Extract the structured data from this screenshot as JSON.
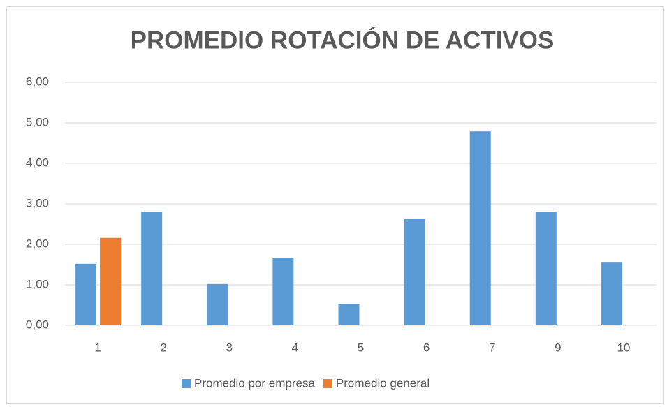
{
  "chart_data": {
    "type": "bar",
    "title": "PROMEDIO  ROTACIÓN DE ACTIVOS",
    "categories": [
      "1",
      "2",
      "3",
      "4",
      "5",
      "6",
      "7",
      "9",
      "10"
    ],
    "series": [
      {
        "name": "Promedio por empresa",
        "color": "#5b9bd5",
        "values": [
          1.52,
          2.81,
          1.02,
          1.67,
          0.53,
          2.62,
          4.79,
          2.81,
          1.55
        ]
      },
      {
        "name": "Promedio general",
        "color": "#ed7d31",
        "values": [
          2.16,
          null,
          null,
          null,
          null,
          null,
          null,
          null,
          null
        ]
      }
    ],
    "ylim": [
      0,
      6
    ],
    "yticks": [
      {
        "value": 0,
        "label": "0,00"
      },
      {
        "value": 1,
        "label": "1,00"
      },
      {
        "value": 2,
        "label": "2,00"
      },
      {
        "value": 3,
        "label": "3,00"
      },
      {
        "value": 4,
        "label": "4,00"
      },
      {
        "value": 5,
        "label": "5,00"
      },
      {
        "value": 6,
        "label": "6,00"
      }
    ],
    "grid": true,
    "legend": "bottom"
  }
}
